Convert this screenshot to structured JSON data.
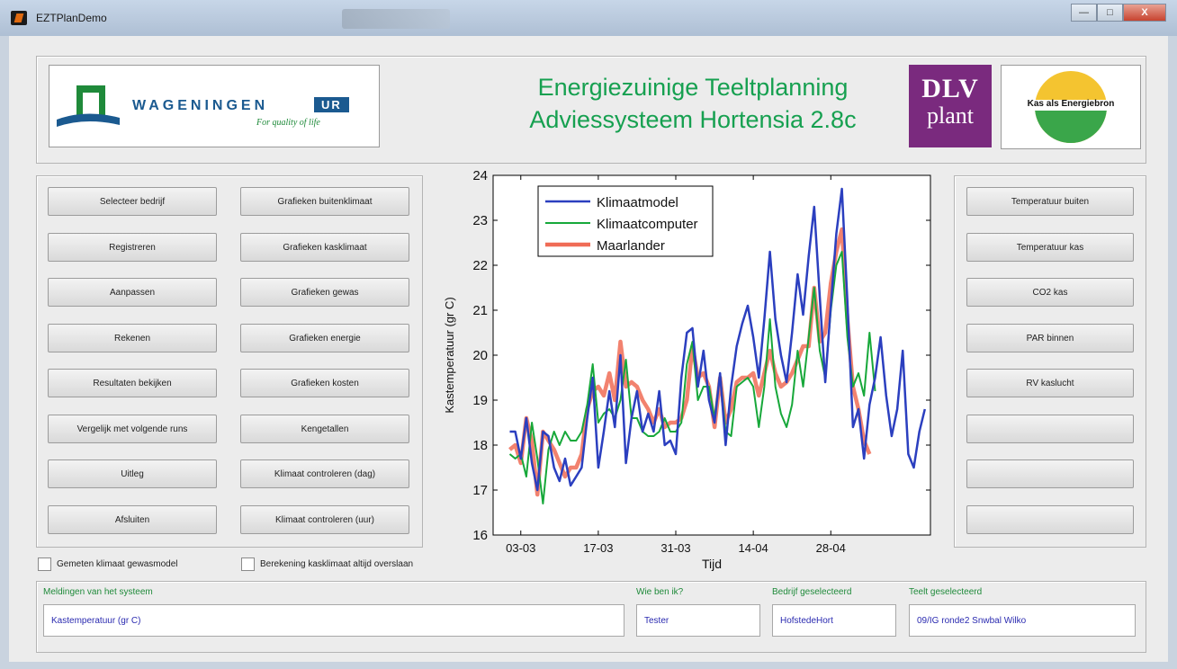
{
  "window": {
    "title": "EZTPlanDemo",
    "min_label": "—",
    "max_label": "□",
    "close_label": "X"
  },
  "header": {
    "title_line1": "Energiezuinige Teeltplanning",
    "title_line2": "Adviessysteem Hortensia 2.8c",
    "logo_wur": {
      "word": "WAGENINGEN",
      "badge": "UR",
      "tagline": "For quality of life"
    },
    "logo_dlv": {
      "line1": "DLV",
      "line2": "plant"
    },
    "logo_kas": {
      "text": "Kas als Energiebron"
    }
  },
  "left_buttons_col1": [
    "Selecteer bedrijf",
    "Registreren",
    "Aanpassen",
    "Rekenen",
    "Resultaten bekijken",
    "Vergelijk met volgende runs",
    "Uitleg",
    "Afsluiten"
  ],
  "left_buttons_col2": [
    "Grafieken buitenklimaat",
    "Grafieken kasklimaat",
    "Grafieken gewas",
    "Grafieken energie",
    "Grafieken kosten",
    "Kengetallen",
    "Klimaat controleren (dag)",
    "Klimaat controleren (uur)"
  ],
  "right_buttons": [
    "Temperatuur buiten",
    "Temperatuur kas",
    "CO2 kas",
    "PAR binnen",
    "RV kaslucht",
    "",
    "",
    ""
  ],
  "checkboxes": [
    {
      "label": "Gemeten klimaat gewasmodel",
      "checked": false
    },
    {
      "label": "Berekening kasklimaat altijd overslaan",
      "checked": false
    }
  ],
  "footer": {
    "messages_label": "Meldingen van het systeem",
    "messages_value": "Kastemperatuur (gr C)",
    "user_label": "Wie ben ik?",
    "user_value": "Tester",
    "company_label": "Bedrijf geselecteerd",
    "company_value": "HofstedeHort",
    "crop_label": "Teelt geselecteerd",
    "crop_value": "09/IG ronde2 Snwbal Wilko"
  },
  "colors": {
    "accent_green": "#16a050",
    "series_blue": "#2b3fbf",
    "series_green": "#17a83a",
    "series_red": "#f06c56"
  },
  "chart_data": {
    "type": "line",
    "xlabel": "Tijd",
    "ylabel": "Kastemperatuur (gr C)",
    "x_tick_labels": [
      "03-03",
      "17-03",
      "31-03",
      "14-04",
      "28-04"
    ],
    "x_ticks_day": [
      3,
      17,
      31,
      45,
      59
    ],
    "xlim_day": [
      -2,
      77
    ],
    "ylim": [
      16,
      24
    ],
    "y_ticks": [
      16,
      17,
      18,
      19,
      20,
      21,
      22,
      23,
      24
    ],
    "legend_position": "top-left",
    "series": [
      {
        "name": "Klimaatmodel",
        "color": "#2b3fbf",
        "width": 2.5,
        "x": [
          1,
          2,
          3,
          4,
          5,
          6,
          7,
          8,
          9,
          10,
          11,
          12,
          13,
          14,
          15,
          16,
          17,
          18,
          19,
          20,
          21,
          22,
          23,
          24,
          25,
          26,
          27,
          28,
          29,
          30,
          31,
          32,
          33,
          34,
          35,
          36,
          37,
          38,
          39,
          40,
          41,
          42,
          43,
          44,
          45,
          46,
          47,
          48,
          49,
          50,
          51,
          52,
          53,
          54,
          55,
          56,
          57,
          58,
          59,
          60,
          61,
          62,
          63,
          64,
          65,
          66,
          67,
          68,
          69,
          70,
          71,
          72,
          73,
          74,
          75,
          76
        ],
        "y": [
          18.3,
          18.3,
          17.7,
          18.6,
          17.6,
          17.0,
          18.3,
          18.2,
          17.5,
          17.2,
          17.7,
          17.1,
          17.3,
          17.5,
          18.6,
          19.5,
          17.5,
          18.3,
          19.2,
          18.4,
          20.0,
          17.6,
          18.6,
          19.2,
          18.3,
          18.7,
          18.3,
          19.2,
          18.0,
          18.1,
          17.8,
          19.5,
          20.5,
          20.6,
          19.3,
          20.1,
          19.0,
          18.5,
          19.6,
          18.0,
          19.3,
          20.2,
          20.7,
          21.1,
          20.4,
          19.5,
          20.8,
          22.3,
          20.8,
          20.0,
          19.4,
          20.5,
          21.8,
          20.9,
          22.2,
          23.3,
          21.3,
          19.4,
          21.1,
          22.7,
          23.7,
          21.2,
          18.4,
          18.8,
          17.7,
          18.9,
          19.5,
          20.4,
          19.1,
          18.2,
          18.8,
          20.1,
          17.8,
          17.5,
          18.3,
          18.8
        ]
      },
      {
        "name": "Klimaatcomputer",
        "color": "#17a83a",
        "width": 2,
        "x": [
          1,
          2,
          3,
          4,
          5,
          6,
          7,
          8,
          9,
          10,
          11,
          12,
          13,
          14,
          15,
          16,
          17,
          18,
          19,
          20,
          21,
          22,
          23,
          24,
          25,
          26,
          27,
          28,
          29,
          30,
          31,
          32,
          33,
          34,
          35,
          36,
          37,
          38,
          39,
          40,
          41,
          42,
          43,
          44,
          45,
          46,
          47,
          48,
          49,
          50,
          51,
          52,
          53,
          54,
          55,
          56,
          57,
          58,
          59,
          60,
          61,
          62,
          63,
          64,
          65,
          66,
          67
        ],
        "y": [
          17.8,
          17.7,
          17.8,
          17.3,
          18.5,
          17.7,
          16.7,
          17.9,
          18.3,
          18.0,
          18.3,
          18.1,
          18.1,
          18.3,
          18.9,
          19.8,
          18.5,
          18.7,
          18.8,
          18.6,
          19.0,
          19.9,
          18.6,
          18.6,
          18.3,
          18.2,
          18.2,
          18.3,
          18.6,
          18.3,
          18.3,
          18.5,
          19.8,
          20.3,
          19.0,
          19.3,
          19.3,
          18.6,
          19.6,
          18.3,
          18.2,
          19.3,
          19.4,
          19.5,
          19.3,
          18.4,
          19.3,
          20.8,
          19.3,
          18.7,
          18.4,
          18.9,
          20.1,
          19.3,
          20.4,
          21.5,
          20.1,
          19.5,
          21.0,
          22.0,
          22.3,
          20.4,
          19.3,
          19.6,
          19.1,
          20.5,
          19.2
        ]
      },
      {
        "name": "Maarlander",
        "color": "#f06c56",
        "width": 4.5,
        "x": [
          1,
          2,
          3,
          4,
          5,
          6,
          7,
          8,
          9,
          10,
          11,
          12,
          13,
          14,
          15,
          16,
          17,
          18,
          19,
          20,
          21,
          22,
          23,
          24,
          25,
          26,
          27,
          28,
          29,
          30,
          31,
          32,
          33,
          34,
          35,
          36,
          37,
          38,
          39,
          40,
          41,
          42,
          43,
          44,
          45,
          46,
          47,
          48,
          49,
          50,
          51,
          52,
          53,
          54,
          55,
          56,
          57,
          58,
          59,
          60,
          61,
          62,
          63,
          64,
          65,
          66
        ],
        "y": [
          17.9,
          18.0,
          17.6,
          18.6,
          18.1,
          16.9,
          18.3,
          18.1,
          17.9,
          17.6,
          17.3,
          17.5,
          17.5,
          17.8,
          18.8,
          19.2,
          19.3,
          19.1,
          19.6,
          19.0,
          20.3,
          19.3,
          19.4,
          19.3,
          19.0,
          18.8,
          18.5,
          18.8,
          18.4,
          18.5,
          18.5,
          18.6,
          19.0,
          20.2,
          19.5,
          19.6,
          19.3,
          18.4,
          19.5,
          18.5,
          18.8,
          19.4,
          19.5,
          19.5,
          19.6,
          19.1,
          19.6,
          20.1,
          19.6,
          19.3,
          19.4,
          19.6,
          19.9,
          20.2,
          20.2,
          21.5,
          20.3,
          20.5,
          21.6,
          22.3,
          22.8,
          20.8,
          19.3,
          18.8,
          18.1,
          17.8
        ]
      }
    ]
  }
}
